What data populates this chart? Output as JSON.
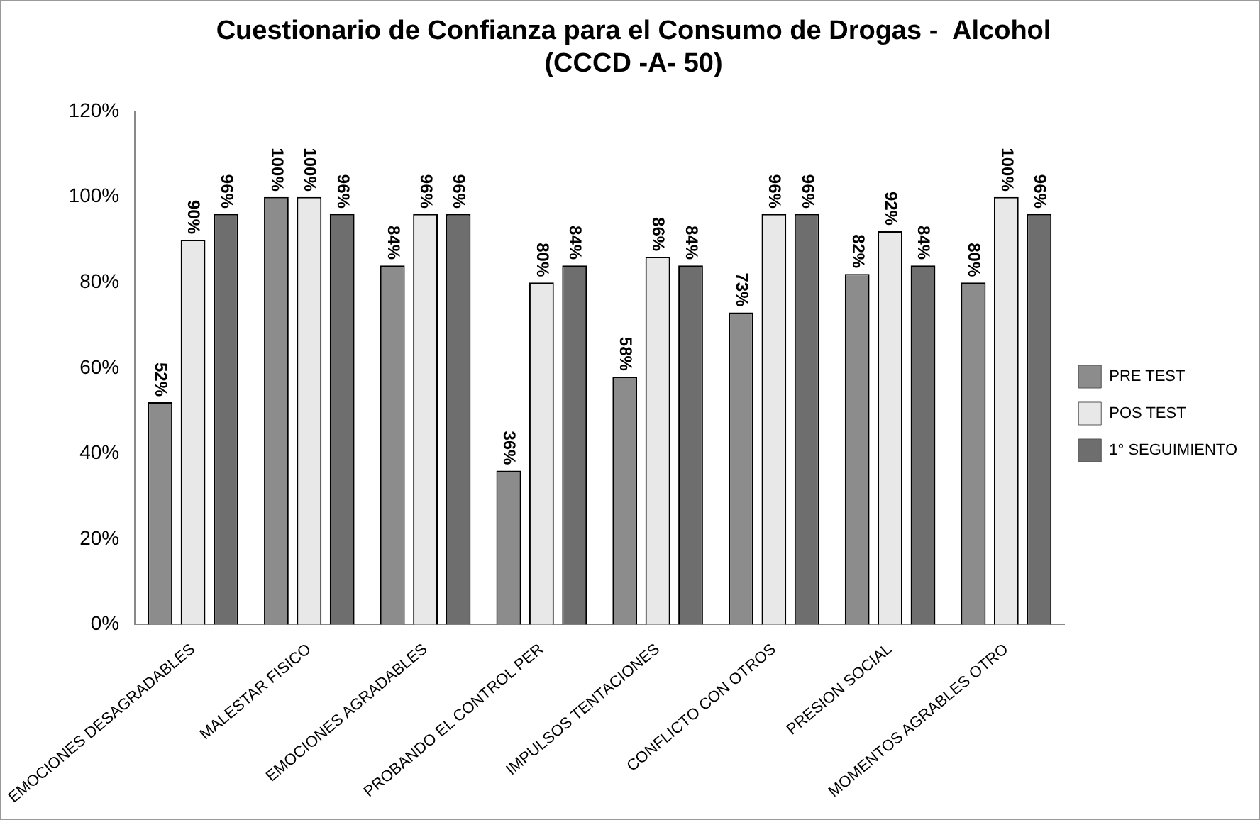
{
  "chart_data": {
    "type": "bar",
    "title": [
      "Cuestionario de Confianza para el Consumo de Drogas -  Alcohol",
      "(CCCD -A- 50)"
    ],
    "categories": [
      "EMOCIONES DESAGRADABLES",
      "MALESTAR FISICO",
      "EMOCIONES AGRADABLES",
      "PROBANDO EL CONTROL PER",
      "IMPULSOS TENTACIONES",
      "CONFLICTO CON OTROS",
      "PRESION SOCIAL",
      "MOMENTOS AGRABLES OTRO"
    ],
    "series": [
      {
        "name": "PRE TEST",
        "color": "#8c8c8c",
        "values": [
          52,
          100,
          84,
          36,
          58,
          73,
          82,
          80
        ],
        "value_labels": [
          "52%",
          "100%",
          "84%",
          "36%",
          "58%",
          "73%",
          "82%",
          "80%"
        ]
      },
      {
        "name": "POS TEST",
        "color": "#e8e8e8",
        "values": [
          90,
          100,
          96,
          80,
          86,
          96,
          92,
          100
        ],
        "value_labels": [
          "90%",
          "100%",
          "96%",
          "80%",
          "86%",
          "96%",
          "92%",
          "100%"
        ]
      },
      {
        "name": "1° SEGUIMIENTO",
        "color": "#6e6e6e",
        "values": [
          96,
          96,
          96,
          84,
          84,
          96,
          84,
          96
        ],
        "value_labels": [
          "96%",
          "96%",
          "96%",
          "84%",
          "84%",
          "96%",
          "84%",
          "96%"
        ]
      }
    ],
    "ylim": [
      0,
      120
    ],
    "yticks": [
      {
        "value": 0,
        "label": "0%"
      },
      {
        "value": 20,
        "label": "20%"
      },
      {
        "value": 40,
        "label": "40%"
      },
      {
        "value": 60,
        "label": "60%"
      },
      {
        "value": 80,
        "label": "80%"
      },
      {
        "value": 100,
        "label": "100%"
      },
      {
        "value": 120,
        "label": "120%"
      }
    ],
    "grid": false,
    "legend": "right"
  }
}
